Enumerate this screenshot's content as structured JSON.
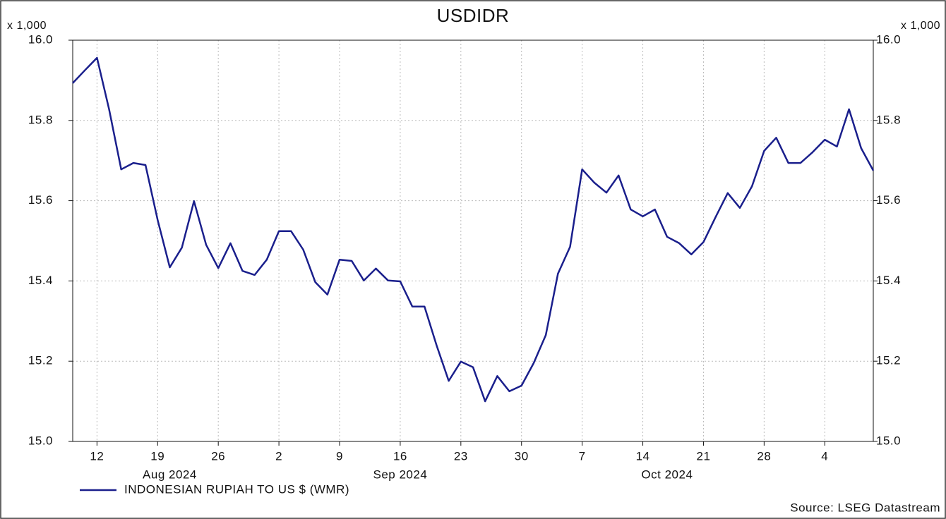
{
  "chart_data": {
    "type": "line",
    "title": "USDIDR",
    "y_unit_label": "x 1,000",
    "y2_unit_label": "x 1,000",
    "source": "Source: LSEG Datastream",
    "xlim": [
      "2024-08-08",
      "2024-11-08"
    ],
    "ylim": [
      15.0,
      16.0
    ],
    "yticks": [
      {
        "value": 15.0,
        "label": "15.0"
      },
      15.2,
      15.4,
      15.6,
      15.8,
      {
        "value": 16.0,
        "label": "16.0"
      }
    ],
    "xticks": [
      {
        "value": "2024-08-12",
        "label": "12"
      },
      {
        "value": "2024-08-19",
        "label": "19"
      },
      {
        "value": "2024-08-26",
        "label": "26"
      },
      {
        "value": "2024-09-02",
        "label": "2"
      },
      {
        "value": "2024-09-09",
        "label": "9"
      },
      {
        "value": "2024-09-16",
        "label": "16"
      },
      {
        "value": "2024-09-23",
        "label": "23"
      },
      {
        "value": "2024-09-30",
        "label": "30"
      },
      {
        "value": "2024-10-07",
        "label": "7"
      },
      {
        "value": "2024-10-14",
        "label": "14"
      },
      {
        "value": "2024-10-21",
        "label": "21"
      },
      {
        "value": "2024-10-28",
        "label": "28"
      },
      {
        "value": "2024-11-04",
        "label": "4"
      }
    ],
    "month_labels": [
      {
        "value": "2024-08",
        "label": "Aug 2024"
      },
      {
        "value": "2024-09",
        "label": "Sep 2024"
      },
      {
        "value": "2024-10",
        "label": "Oct 2024"
      }
    ],
    "grid": true,
    "x": [
      "2024-08-08",
      "2024-08-09",
      "2024-08-12",
      "2024-08-13",
      "2024-08-14",
      "2024-08-15",
      "2024-08-16",
      "2024-08-19",
      "2024-08-20",
      "2024-08-21",
      "2024-08-22",
      "2024-08-23",
      "2024-08-26",
      "2024-08-27",
      "2024-08-28",
      "2024-08-29",
      "2024-08-30",
      "2024-09-02",
      "2024-09-03",
      "2024-09-04",
      "2024-09-05",
      "2024-09-06",
      "2024-09-09",
      "2024-09-10",
      "2024-09-11",
      "2024-09-12",
      "2024-09-13",
      "2024-09-16",
      "2024-09-17",
      "2024-09-18",
      "2024-09-19",
      "2024-09-20",
      "2024-09-23",
      "2024-09-24",
      "2024-09-25",
      "2024-09-26",
      "2024-09-27",
      "2024-09-30",
      "2024-10-01",
      "2024-10-02",
      "2024-10-03",
      "2024-10-04",
      "2024-10-07",
      "2024-10-08",
      "2024-10-09",
      "2024-10-10",
      "2024-10-11",
      "2024-10-14",
      "2024-10-15",
      "2024-10-16",
      "2024-10-17",
      "2024-10-18",
      "2024-10-21",
      "2024-10-22",
      "2024-10-23",
      "2024-10-24",
      "2024-10-25",
      "2024-10-28",
      "2024-10-29",
      "2024-10-30",
      "2024-10-31",
      "2024-11-01",
      "2024-11-04",
      "2024-11-05",
      "2024-11-06",
      "2024-11-07",
      "2024-11-08"
    ],
    "series": [
      {
        "name": "INDONESIAN RUPIAH TO US $ (WMR)",
        "color": "#1a1f8c",
        "values": [
          15.893,
          15.925,
          15.956,
          15.828,
          15.678,
          15.694,
          15.689,
          15.552,
          15.434,
          15.483,
          15.599,
          15.49,
          15.432,
          15.494,
          15.425,
          15.415,
          15.453,
          15.524,
          15.524,
          15.478,
          15.397,
          15.366,
          15.453,
          15.45,
          15.401,
          15.431,
          15.401,
          15.399,
          15.336,
          15.336,
          15.239,
          15.151,
          15.199,
          15.185,
          15.1,
          15.163,
          15.125,
          15.139,
          15.195,
          15.265,
          15.418,
          15.485,
          15.678,
          15.645,
          15.62,
          15.663,
          15.578,
          15.561,
          15.578,
          15.51,
          15.494,
          15.466,
          15.497,
          15.559,
          15.619,
          15.582,
          15.636,
          15.724,
          15.757,
          15.694,
          15.694,
          15.721,
          15.752,
          15.735,
          15.828,
          15.731,
          15.675
        ]
      }
    ]
  }
}
